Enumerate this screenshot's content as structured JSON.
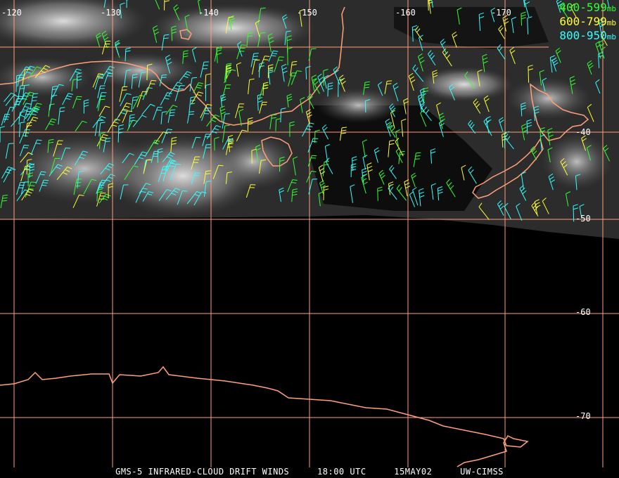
{
  "map": {
    "longitude_labels": [
      "-120",
      "-130",
      "-140",
      "-150",
      "-160",
      "-170"
    ],
    "latitude_labels": [
      "-40",
      "-50",
      "-60",
      "-70"
    ],
    "legend": [
      {
        "label": "400-599",
        "unit": "mb",
        "color": "#33ff33"
      },
      {
        "label": "600-799",
        "unit": "mb",
        "color": "#ffff33"
      },
      {
        "label": "800-950",
        "unit": "mb",
        "color": "#33ffff"
      }
    ],
    "coastline_color": "#ffa07a",
    "grid_color": "#ffa07a"
  },
  "footer": {
    "product": "GMS-5 INFRARED-CLOUD DRIFT WINDS",
    "time": "18:00 UTC",
    "date": "15MAY02",
    "source": "UW-CIMSS"
  }
}
